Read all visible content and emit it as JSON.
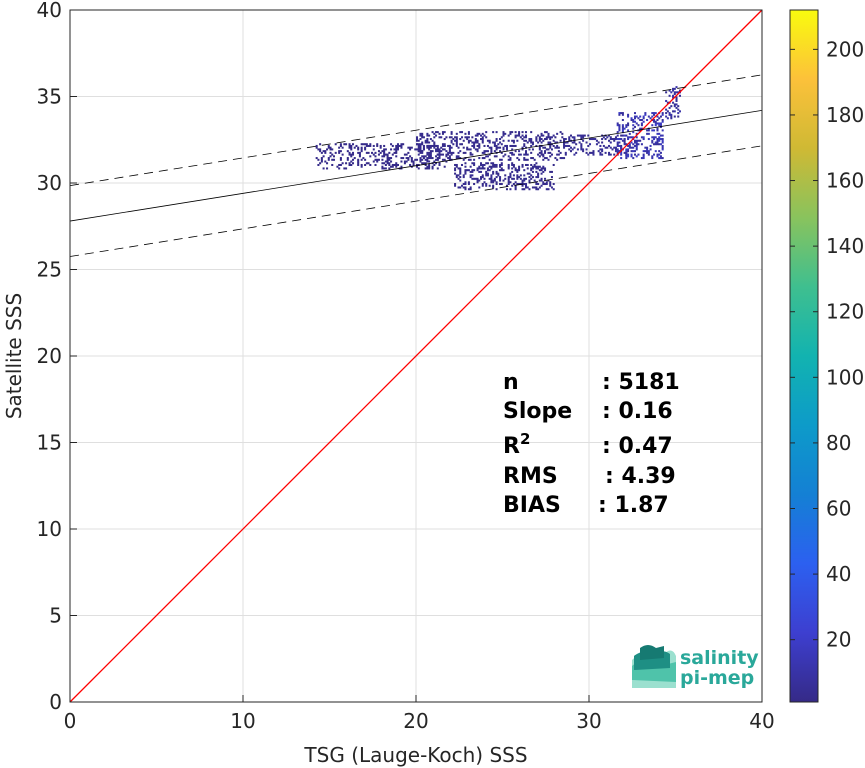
{
  "chart_data": {
    "type": "heatmap",
    "xlabel": "TSG (Lauge-Koch) SSS",
    "ylabel": "Satellite SSS",
    "xlim": [
      0,
      40
    ],
    "ylim": [
      0,
      40
    ],
    "xticks": [
      0,
      10,
      20,
      30,
      40
    ],
    "yticks": [
      0,
      5,
      10,
      15,
      20,
      25,
      30,
      35,
      40
    ],
    "grid": true,
    "colorbar": {
      "range": [
        1,
        212
      ],
      "ticks": [
        20,
        40,
        60,
        80,
        100,
        120,
        140,
        160,
        180,
        200
      ],
      "colormap": "parula"
    },
    "identity_line": {
      "x": [
        0,
        40
      ],
      "y": [
        0,
        40
      ],
      "color": "#ff0000"
    },
    "fit_line": {
      "intercept": 27.8,
      "slope": 0.16,
      "color": "#000000"
    },
    "fit_bounds_offset": 2.05,
    "density_clusters": [
      {
        "x_range": [
          14.2,
          22.0
        ],
        "y_range": [
          30.8,
          32.3
        ],
        "level": 2
      },
      {
        "x_range": [
          20.0,
          28.6
        ],
        "y_range": [
          31.3,
          33.0
        ],
        "level": 3
      },
      {
        "x_range": [
          22.2,
          28.0
        ],
        "y_range": [
          29.6,
          31.2
        ],
        "level": 3
      },
      {
        "x_range": [
          28.5,
          32.3
        ],
        "y_range": [
          31.6,
          32.8
        ],
        "level": 5
      },
      {
        "x_range": [
          31.6,
          34.3
        ],
        "y_range": [
          31.4,
          34.1
        ],
        "level": 14
      },
      {
        "x_range": [
          34.4,
          35.3
        ],
        "y_range": [
          33.6,
          35.6
        ],
        "level": 8
      }
    ],
    "stats": [
      {
        "label": "n",
        "value": ": 5181"
      },
      {
        "label": "Slope",
        "value": ": 0.16"
      },
      {
        "label": "R",
        "label_sup": "2",
        "value": ": 0.47"
      },
      {
        "label": "RMS",
        "value": ": 4.39"
      },
      {
        "label": "BIAS",
        "value": ": 1.87"
      }
    ]
  },
  "logo": {
    "line1": "salinity",
    "line2": "pi-mep",
    "color": "#2aa89a"
  }
}
